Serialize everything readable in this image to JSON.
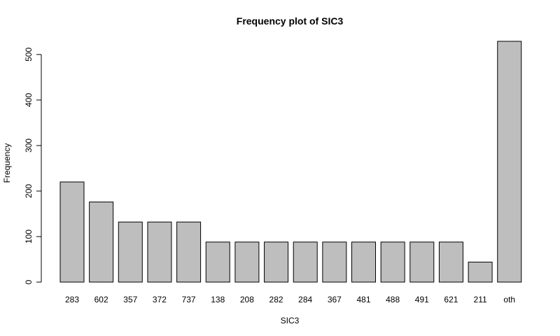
{
  "chart_data": {
    "type": "bar",
    "title": "Frequency plot of SIC3",
    "xlabel": "SIC3",
    "ylabel": "Frequency",
    "categories": [
      "283",
      "602",
      "357",
      "372",
      "737",
      "138",
      "208",
      "282",
      "284",
      "367",
      "481",
      "488",
      "491",
      "621",
      "211",
      "oth"
    ],
    "values": [
      220,
      176,
      132,
      132,
      132,
      88,
      88,
      88,
      88,
      88,
      88,
      88,
      88,
      88,
      44,
      529
    ],
    "ylim": [
      0,
      529
    ],
    "yticks": [
      0,
      100,
      200,
      300,
      400,
      500
    ],
    "grid": false,
    "legend": "none",
    "colors": {
      "bar_fill": "#bebebe",
      "bar_stroke": "#000000",
      "axis": "#000000"
    }
  }
}
